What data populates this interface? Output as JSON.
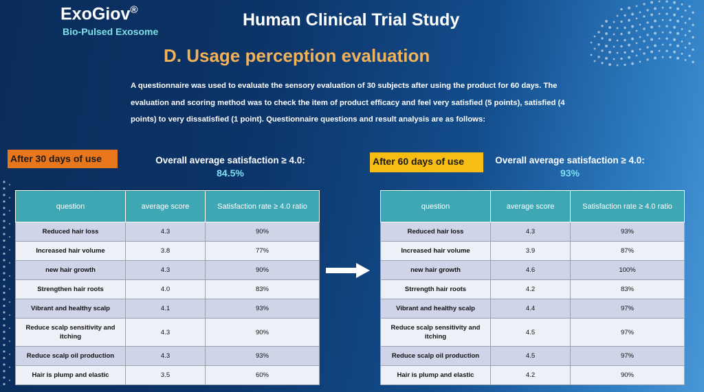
{
  "brand": {
    "name": "ExoGiov",
    "mark": "®",
    "subtitle": "Bio-Pulsed Exosome"
  },
  "header": {
    "title": "Human Clinical Trial Study"
  },
  "section": {
    "title": "D. Usage perception evaluation"
  },
  "intro": "A questionnaire was used to evaluate the sensory evaluation of 30 subjects after using the product for 60 days. The evaluation and scoring method was to check the item of product efficacy and feel very satisfied (5 points), satisfied (4 points) to very dissatisfied (1 point). Questionnaire questions and result analysis are as follows:",
  "day30": {
    "tag": "After 30 days of use",
    "overall_label": "Overall average satisfaction ≥ 4.0:",
    "overall_value": "84.5%",
    "columns": [
      "question",
      "average score",
      "Satisfaction rate ≥ 4.0 ratio"
    ],
    "rows": [
      [
        "Reduced hair loss",
        "4.3",
        "90%"
      ],
      [
        "Increased hair volume",
        "3.8",
        "77%"
      ],
      [
        "new hair growth",
        "4.3",
        "90%"
      ],
      [
        "Strengthen hair roots",
        "4.0",
        "83%"
      ],
      [
        "Vibrant and healthy scalp",
        "4.1",
        "93%"
      ],
      [
        "Reduce scalp sensitivity and itching",
        "4.3",
        "90%"
      ],
      [
        "Reduce scalp oil production",
        "4.3",
        "93%"
      ],
      [
        "Hair is plump and elastic",
        "3.5",
        "60%"
      ]
    ]
  },
  "day60": {
    "tag": "After 60 days of use",
    "overall_label": "Overall average satisfaction ≥ 4.0:",
    "overall_value": "93%",
    "columns": [
      "question",
      "average score",
      "Satisfaction rate ≥ 4.0 ratio"
    ],
    "rows": [
      [
        "Reduced hair loss",
        "4.3",
        "93%"
      ],
      [
        "Increased hair volume",
        "3.9",
        "87%"
      ],
      [
        "new hair growth",
        "4.6",
        "100%"
      ],
      [
        "Strrength hair roots",
        "4.2",
        "83%"
      ],
      [
        "Vibrant and healthy scalp",
        "4.4",
        "97%"
      ],
      [
        "Reduce scalp sensitivity and itching",
        "4.5",
        "97%"
      ],
      [
        "Reduce scalp oil production",
        "4.5",
        "97%"
      ],
      [
        "Hair is plump and elastic",
        "4.2",
        "90%"
      ]
    ]
  },
  "colors": {
    "header_teal": "#3fa7b3",
    "tag_orange": "#e8761c",
    "tag_yellow": "#f7bd13",
    "section_gold": "#f2b25a",
    "accent_cyan": "#7ee0f2"
  }
}
